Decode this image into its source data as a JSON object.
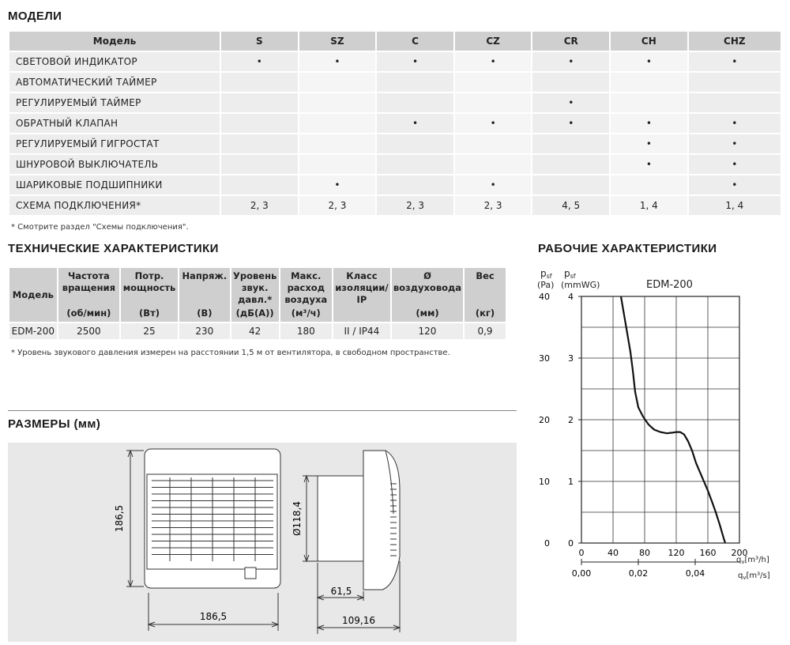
{
  "models": {
    "title": "МОДЕЛИ",
    "header": [
      "Модель",
      "S",
      "SZ",
      "C",
      "CZ",
      "CR",
      "CH",
      "CHZ"
    ],
    "rows": [
      {
        "label": "СВЕТОВОЙ ИНДИКАТОР",
        "cells": [
          "•",
          "•",
          "•",
          "•",
          "•",
          "•",
          "•"
        ]
      },
      {
        "label": "АВТОМАТИЧЕСКИЙ ТАЙМЕР",
        "cells": [
          "",
          "",
          "",
          "",
          "",
          "",
          ""
        ]
      },
      {
        "label": "РЕГУЛИРУЕМЫЙ ТАЙМЕР",
        "cells": [
          "",
          "",
          "",
          "",
          "•",
          "",
          ""
        ]
      },
      {
        "label": "ОБРАТНЫЙ КЛАПАН",
        "cells": [
          "",
          "",
          "•",
          "•",
          "•",
          "•",
          "•"
        ]
      },
      {
        "label": "РЕГУЛИРУЕМЫЙ ГИГРОСТАТ",
        "cells": [
          "",
          "",
          "",
          "",
          "",
          "•",
          "•"
        ]
      },
      {
        "label": "ШНУРОВОЙ ВЫКЛЮЧАТЕЛЬ",
        "cells": [
          "",
          "",
          "",
          "",
          "",
          "•",
          "•"
        ]
      },
      {
        "label": "ШАРИКОВЫЕ ПОДШИПНИКИ",
        "cells": [
          "",
          "•",
          "",
          "•",
          "",
          "",
          "•"
        ]
      },
      {
        "label": "СХЕМА ПОДКЛЮЧЕНИЯ*",
        "cells": [
          "2, 3",
          "2, 3",
          "2, 3",
          "2, 3",
          "4, 5",
          "1, 4",
          "1, 4"
        ]
      }
    ],
    "note": "* Смотрите раздел \"Схемы подключения\"."
  },
  "tech": {
    "title": "ТЕХНИЧЕСКИЕ ХАРАКТЕРИСТИКИ",
    "headers": [
      {
        "top": "Модель",
        "bottom": ""
      },
      {
        "top": "Частота вращения",
        "bottom": "(об/мин)"
      },
      {
        "top": "Потр. мощность",
        "bottom": "(Вт)"
      },
      {
        "top": "Напряж.",
        "bottom": "(В)"
      },
      {
        "top": "Уровень звук. давл.*",
        "bottom": "(дБ(А))"
      },
      {
        "top": "Макс. расход воздуха",
        "bottom": "(м³/ч)"
      },
      {
        "top": "Класс изоляции/ IP",
        "bottom": ""
      },
      {
        "top": "Ø воздуховода",
        "bottom": "(мм)"
      },
      {
        "top": "Вес",
        "bottom": "(кг)"
      }
    ],
    "row": [
      "EDM-200",
      "2500",
      "25",
      "230",
      "42",
      "180",
      "II / IP44",
      "120",
      "0,9"
    ],
    "note": "* Уровень звукового давления измерен на расстоянии 1,5 м от вентилятора, в свободном пространстве."
  },
  "dims": {
    "title": "РАЗМЕРЫ (мм)",
    "height": "186,5",
    "width": "186,5",
    "diameter": "Ø118,4",
    "depth1": "61,5",
    "depth2": "109,16"
  },
  "perf": {
    "title": "РАБОЧИЕ ХАРАКТЕРИСТИКИ",
    "model": "EDM-200",
    "pa_label": "p",
    "pa_sub": "sf",
    "pa_unit": "(Pa)",
    "mm_label": "p",
    "mm_sub": "sf",
    "mm_unit": "(mmWG)",
    "qh_label": "q",
    "qh_sub": "v",
    "qh_unit": "[m³/h]",
    "qs_label": "q",
    "qs_sub": "v",
    "qs_unit": "[m³/s]"
  },
  "chart_data": {
    "type": "line",
    "title": "EDM-200",
    "xlabel": "qv [m³/h]",
    "ylabel": "psf (Pa)",
    "xlim": [
      0,
      200
    ],
    "ylim": [
      0,
      40
    ],
    "grid": true,
    "x_ticks": [
      "0",
      "40",
      "80",
      "120",
      "160",
      "200"
    ],
    "x2_ticks": [
      "0,00",
      "0,02",
      "0,04"
    ],
    "x2_tick_values": [
      0,
      72,
      144
    ],
    "y_ticks": [
      "0",
      "10",
      "20",
      "30",
      "40"
    ],
    "y2_ticks": [
      "0",
      "1",
      "2",
      "3",
      "4"
    ],
    "series": [
      {
        "x": [
          50,
          54,
          58,
          62,
          65,
          68,
          72,
          78,
          85,
          92,
          100,
          108,
          115,
          120,
          125,
          130,
          135,
          140,
          145,
          150,
          155,
          160,
          165,
          170,
          175,
          180,
          182
        ],
        "y": [
          40,
          37,
          34,
          31,
          28,
          24.5,
          22,
          20.5,
          19.2,
          18.4,
          18,
          17.8,
          17.9,
          18,
          18,
          17.6,
          16.5,
          15,
          13,
          11.5,
          10,
          8.5,
          6.8,
          5,
          3,
          0.8,
          0
        ]
      }
    ]
  }
}
